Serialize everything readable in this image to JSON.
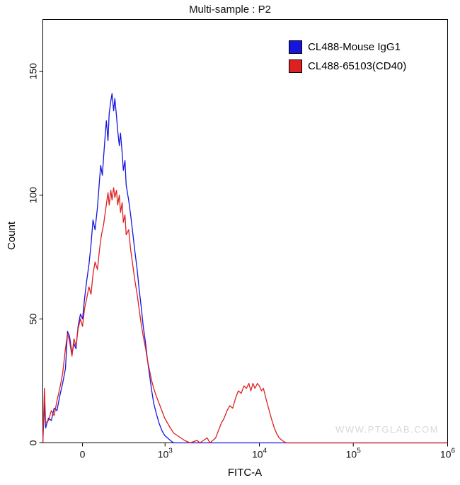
{
  "title": "Multi-sample : P2",
  "watermark": "WWW.PTGLAB.COM",
  "legend": {
    "position": "top-right",
    "entries": [
      {
        "label": "CL488-Mouse IgG1",
        "color": "#1515dd"
      },
      {
        "label": "CL488-65103(CD40)",
        "color": "#dd2020"
      }
    ]
  },
  "chart_data": {
    "type": "line",
    "subtype": "flow-cytometry-histogram-overlay",
    "title": "Multi-sample : P2",
    "xlabel": "FITC-A",
    "ylabel": "Count",
    "grid": false,
    "legend_position": "top-right",
    "x_axis": {
      "scale": "logicle (biexponential)",
      "note": "tick pos and series x values are fractions of plot width",
      "ticks": [
        {
          "label": "0",
          "sup": "",
          "pos": 0.098
        },
        {
          "label": "10",
          "sup": "3",
          "pos": 0.302
        },
        {
          "label": "10",
          "sup": "4",
          "pos": 0.535
        },
        {
          "label": "10",
          "sup": "5",
          "pos": 0.767
        },
        {
          "label": "10",
          "sup": "6",
          "pos": 1.0
        }
      ]
    },
    "y_axis": {
      "ticks": [
        0,
        50,
        100,
        150
      ],
      "max": 170.9
    },
    "series": [
      {
        "name": "CL488-Mouse IgG1",
        "color": "#1515dd",
        "peak_count": 141,
        "peak_x_label": "~3x10^2 (between 0 and 10^3)",
        "points": [
          [
            0.0,
            0
          ],
          [
            0.004,
            16
          ],
          [
            0.007,
            6
          ],
          [
            0.014,
            10
          ],
          [
            0.021,
            9
          ],
          [
            0.028,
            14
          ],
          [
            0.035,
            13
          ],
          [
            0.042,
            19
          ],
          [
            0.049,
            24
          ],
          [
            0.056,
            30
          ],
          [
            0.061,
            45
          ],
          [
            0.066,
            43
          ],
          [
            0.072,
            36
          ],
          [
            0.077,
            40
          ],
          [
            0.082,
            38
          ],
          [
            0.087,
            47
          ],
          [
            0.093,
            52
          ],
          [
            0.098,
            50
          ],
          [
            0.103,
            58
          ],
          [
            0.108,
            65
          ],
          [
            0.114,
            72
          ],
          [
            0.119,
            80
          ],
          [
            0.124,
            90
          ],
          [
            0.129,
            86
          ],
          [
            0.135,
            95
          ],
          [
            0.14,
            106
          ],
          [
            0.143,
            112
          ],
          [
            0.147,
            108
          ],
          [
            0.15,
            115
          ],
          [
            0.154,
            124
          ],
          [
            0.157,
            130
          ],
          [
            0.161,
            122
          ],
          [
            0.164,
            133
          ],
          [
            0.168,
            138
          ],
          [
            0.171,
            141
          ],
          [
            0.175,
            134
          ],
          [
            0.178,
            139
          ],
          [
            0.182,
            132
          ],
          [
            0.185,
            126
          ],
          [
            0.189,
            120
          ],
          [
            0.192,
            125
          ],
          [
            0.196,
            117
          ],
          [
            0.199,
            110
          ],
          [
            0.203,
            114
          ],
          [
            0.206,
            104
          ],
          [
            0.212,
            98
          ],
          [
            0.217,
            92
          ],
          [
            0.222,
            85
          ],
          [
            0.227,
            78
          ],
          [
            0.233,
            70
          ],
          [
            0.238,
            62
          ],
          [
            0.243,
            55
          ],
          [
            0.248,
            47
          ],
          [
            0.254,
            40
          ],
          [
            0.259,
            33
          ],
          [
            0.264,
            27
          ],
          [
            0.269,
            21
          ],
          [
            0.274,
            16
          ],
          [
            0.28,
            12
          ],
          [
            0.287,
            8
          ],
          [
            0.294,
            5
          ],
          [
            0.301,
            3
          ],
          [
            0.308,
            2
          ],
          [
            0.315,
            1
          ],
          [
            0.323,
            0
          ],
          [
            1.0,
            0
          ]
        ]
      },
      {
        "name": "CL488-65103(CD40)",
        "color": "#dd2020",
        "peak_count": 103,
        "peak_x_label": "~3x10^2 (between 0 and 10^3)",
        "secondary_peak": {
          "x_label": "~10^4",
          "count": 24
        },
        "points": [
          [
            0.0,
            0
          ],
          [
            0.004,
            22
          ],
          [
            0.007,
            8
          ],
          [
            0.014,
            9
          ],
          [
            0.021,
            13
          ],
          [
            0.028,
            11
          ],
          [
            0.035,
            17
          ],
          [
            0.042,
            22
          ],
          [
            0.049,
            28
          ],
          [
            0.056,
            38
          ],
          [
            0.061,
            44
          ],
          [
            0.066,
            41
          ],
          [
            0.072,
            35
          ],
          [
            0.077,
            42
          ],
          [
            0.082,
            39
          ],
          [
            0.087,
            46
          ],
          [
            0.093,
            50
          ],
          [
            0.098,
            47
          ],
          [
            0.103,
            54
          ],
          [
            0.108,
            58
          ],
          [
            0.114,
            63
          ],
          [
            0.119,
            60
          ],
          [
            0.124,
            68
          ],
          [
            0.129,
            73
          ],
          [
            0.135,
            70
          ],
          [
            0.14,
            78
          ],
          [
            0.145,
            84
          ],
          [
            0.15,
            88
          ],
          [
            0.156,
            95
          ],
          [
            0.161,
            101
          ],
          [
            0.164,
            96
          ],
          [
            0.168,
            102
          ],
          [
            0.171,
            98
          ],
          [
            0.175,
            103
          ],
          [
            0.178,
            99
          ],
          [
            0.182,
            102
          ],
          [
            0.185,
            96
          ],
          [
            0.189,
            100
          ],
          [
            0.192,
            93
          ],
          [
            0.196,
            97
          ],
          [
            0.199,
            89
          ],
          [
            0.203,
            92
          ],
          [
            0.206,
            84
          ],
          [
            0.212,
            86
          ],
          [
            0.217,
            78
          ],
          [
            0.222,
            72
          ],
          [
            0.227,
            66
          ],
          [
            0.233,
            60
          ],
          [
            0.238,
            54
          ],
          [
            0.243,
            48
          ],
          [
            0.248,
            43
          ],
          [
            0.254,
            38
          ],
          [
            0.259,
            33
          ],
          [
            0.264,
            29
          ],
          [
            0.269,
            25
          ],
          [
            0.274,
            22
          ],
          [
            0.28,
            19
          ],
          [
            0.287,
            16
          ],
          [
            0.294,
            13
          ],
          [
            0.301,
            10
          ],
          [
            0.308,
            8
          ],
          [
            0.315,
            6
          ],
          [
            0.323,
            4
          ],
          [
            0.332,
            3
          ],
          [
            0.341,
            2
          ],
          [
            0.35,
            1
          ],
          [
            0.364,
            0
          ],
          [
            0.381,
            1
          ],
          [
            0.388,
            0
          ],
          [
            0.406,
            2
          ],
          [
            0.413,
            0
          ],
          [
            0.42,
            1
          ],
          [
            0.427,
            2
          ],
          [
            0.434,
            5
          ],
          [
            0.441,
            8
          ],
          [
            0.448,
            10
          ],
          [
            0.455,
            13
          ],
          [
            0.462,
            15
          ],
          [
            0.469,
            14
          ],
          [
            0.476,
            18
          ],
          [
            0.483,
            21
          ],
          [
            0.49,
            20
          ],
          [
            0.497,
            23
          ],
          [
            0.503,
            22
          ],
          [
            0.509,
            24
          ],
          [
            0.514,
            21
          ],
          [
            0.519,
            24
          ],
          [
            0.524,
            22
          ],
          [
            0.53,
            24
          ],
          [
            0.535,
            23
          ],
          [
            0.54,
            21
          ],
          [
            0.545,
            22
          ],
          [
            0.551,
            18
          ],
          [
            0.556,
            15
          ],
          [
            0.561,
            12
          ],
          [
            0.566,
            9
          ],
          [
            0.572,
            6
          ],
          [
            0.577,
            4
          ],
          [
            0.584,
            2
          ],
          [
            0.591,
            1
          ],
          [
            0.601,
            0
          ],
          [
            1.0,
            0
          ]
        ]
      }
    ]
  }
}
